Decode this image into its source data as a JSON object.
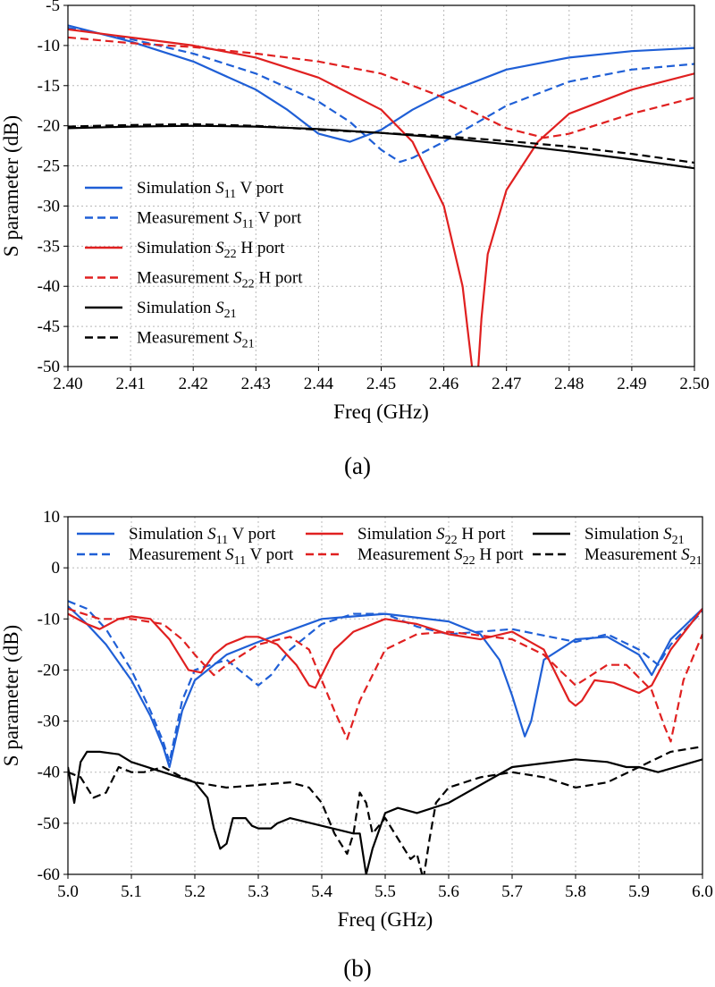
{
  "chart_data": [
    {
      "type": "line",
      "panel_label": "(a)",
      "xlabel": "Freq (GHz)",
      "ylabel": "S parameter (dB)",
      "xlim": [
        2.4,
        2.5
      ],
      "ylim": [
        -50,
        -5
      ],
      "xticks": [
        "2.40",
        "2.41",
        "2.42",
        "2.43",
        "2.44",
        "2.45",
        "2.46",
        "2.47",
        "2.48",
        "2.49",
        "2.50"
      ],
      "yticks": [
        "-5",
        "-10",
        "-15",
        "-20",
        "-25",
        "-30",
        "-35",
        "-40",
        "-45",
        "-50"
      ],
      "grid": true,
      "legend_position": "center-left",
      "series": [
        {
          "name_main": "Simulation ",
          "name_sym": "S",
          "name_sub": "11",
          "name_tail": " V port",
          "color": "#1f5fd6",
          "dashed": false,
          "x": [
            2.4,
            2.41,
            2.42,
            2.43,
            2.435,
            2.44,
            2.445,
            2.45,
            2.455,
            2.46,
            2.47,
            2.48,
            2.49,
            2.5
          ],
          "y": [
            -7.5,
            -9.5,
            -12,
            -15.5,
            -18,
            -21,
            -22,
            -20.5,
            -18,
            -16,
            -13,
            -11.5,
            -10.7,
            -10.3
          ]
        },
        {
          "name_main": "Measurement ",
          "name_sym": "S",
          "name_sub": "11",
          "name_tail": " V port",
          "color": "#1f5fd6",
          "dashed": true,
          "x": [
            2.4,
            2.41,
            2.42,
            2.43,
            2.44,
            2.445,
            2.45,
            2.453,
            2.455,
            2.46,
            2.47,
            2.48,
            2.49,
            2.5
          ],
          "y": [
            -7.8,
            -9.2,
            -11,
            -13.5,
            -17,
            -19.5,
            -23,
            -24.5,
            -24,
            -22,
            -17.5,
            -14.5,
            -13,
            -12.3
          ]
        },
        {
          "name_main": "Simulation ",
          "name_sym": "S",
          "name_sub": "22",
          "name_tail": " H port",
          "color": "#e02020",
          "dashed": false,
          "x": [
            2.4,
            2.41,
            2.42,
            2.43,
            2.44,
            2.45,
            2.455,
            2.46,
            2.463,
            2.4645,
            2.465,
            2.4655,
            2.466,
            2.467,
            2.47,
            2.475,
            2.48,
            2.49,
            2.5
          ],
          "y": [
            -8,
            -9,
            -10,
            -11.5,
            -14,
            -18,
            -22,
            -30,
            -40,
            -50,
            -55,
            -50,
            -44,
            -36,
            -28,
            -22,
            -18.5,
            -15.5,
            -13.5
          ]
        },
        {
          "name_main": "Measurement ",
          "name_sym": "S",
          "name_sub": "22",
          "name_tail": " H port",
          "color": "#e02020",
          "dashed": true,
          "x": [
            2.4,
            2.41,
            2.42,
            2.43,
            2.44,
            2.45,
            2.46,
            2.47,
            2.476,
            2.48,
            2.49,
            2.5
          ],
          "y": [
            -9,
            -9.7,
            -10.2,
            -11,
            -12,
            -13.5,
            -16.5,
            -20.3,
            -21.5,
            -21,
            -18.5,
            -16.5
          ]
        },
        {
          "name_main": "Simulation ",
          "name_sym": "S",
          "name_sub": "21",
          "name_tail": "",
          "color": "#000000",
          "dashed": false,
          "x": [
            2.4,
            2.41,
            2.42,
            2.43,
            2.44,
            2.45,
            2.46,
            2.47,
            2.48,
            2.49,
            2.5
          ],
          "y": [
            -20.3,
            -20.1,
            -20.0,
            -20.1,
            -20.4,
            -20.9,
            -21.5,
            -22.3,
            -23.2,
            -24.2,
            -25.3
          ]
        },
        {
          "name_main": "Measurement ",
          "name_sym": "S",
          "name_sub": "21",
          "name_tail": "",
          "color": "#000000",
          "dashed": true,
          "x": [
            2.4,
            2.41,
            2.42,
            2.43,
            2.44,
            2.45,
            2.46,
            2.47,
            2.48,
            2.49,
            2.5
          ],
          "y": [
            -20.1,
            -19.9,
            -19.8,
            -20.0,
            -20.5,
            -20.9,
            -21.3,
            -21.9,
            -22.6,
            -23.5,
            -24.6
          ]
        }
      ]
    },
    {
      "type": "line",
      "panel_label": "(b)",
      "xlabel": "Freq (GHz)",
      "ylabel": "S parameter (dB)",
      "xlim": [
        5.0,
        6.0
      ],
      "ylim": [
        -60,
        10
      ],
      "xticks": [
        "5.0",
        "5.1",
        "5.2",
        "5.3",
        "5.4",
        "5.5",
        "5.6",
        "5.7",
        "5.8",
        "5.9",
        "6.0"
      ],
      "yticks": [
        "10",
        "0",
        "-10",
        "-20",
        "-30",
        "-40",
        "-50",
        "-60"
      ],
      "grid": true,
      "legend_position": "top",
      "series": [
        {
          "name_main": "Simulation ",
          "name_sym": "S",
          "name_sub": "11",
          "name_tail": " V port",
          "color": "#1f5fd6",
          "dashed": false,
          "x": [
            5.0,
            5.03,
            5.06,
            5.1,
            5.13,
            5.15,
            5.16,
            5.18,
            5.2,
            5.25,
            5.3,
            5.4,
            5.5,
            5.6,
            5.65,
            5.68,
            5.7,
            5.72,
            5.73,
            5.75,
            5.8,
            5.85,
            5.9,
            5.92,
            5.95,
            6.0
          ],
          "y": [
            -7.5,
            -11,
            -15,
            -22,
            -29,
            -35,
            -39,
            -28,
            -22,
            -17,
            -14.5,
            -10,
            -9,
            -10.5,
            -13,
            -18,
            -25,
            -33,
            -30,
            -18,
            -14,
            -13.5,
            -17,
            -21,
            -14,
            -8
          ]
        },
        {
          "name_main": "Measurement ",
          "name_sym": "S",
          "name_sub": "11",
          "name_tail": " V port",
          "color": "#1f5fd6",
          "dashed": true,
          "x": [
            5.0,
            5.03,
            5.06,
            5.1,
            5.13,
            5.15,
            5.16,
            5.18,
            5.2,
            5.25,
            5.28,
            5.3,
            5.32,
            5.35,
            5.4,
            5.45,
            5.5,
            5.55,
            5.6,
            5.7,
            5.8,
            5.85,
            5.9,
            5.93,
            5.95,
            6.0
          ],
          "y": [
            -6.5,
            -8,
            -12,
            -20,
            -28,
            -34,
            -38,
            -26,
            -20,
            -18,
            -21,
            -23,
            -21,
            -16,
            -11,
            -9,
            -9,
            -11.5,
            -13,
            -12,
            -14.5,
            -13,
            -16,
            -19,
            -15,
            -8.5
          ]
        },
        {
          "name_main": "Simulation ",
          "name_sym": "S",
          "name_sub": "22",
          "name_tail": " H port",
          "color": "#e02020",
          "dashed": false,
          "x": [
            5.0,
            5.03,
            5.05,
            5.08,
            5.1,
            5.13,
            5.16,
            5.19,
            5.21,
            5.23,
            5.25,
            5.28,
            5.3,
            5.33,
            5.36,
            5.38,
            5.39,
            5.4,
            5.42,
            5.45,
            5.5,
            5.55,
            5.6,
            5.65,
            5.7,
            5.75,
            5.79,
            5.8,
            5.81,
            5.83,
            5.86,
            5.9,
            5.92,
            5.95,
            6.0
          ],
          "y": [
            -9,
            -11,
            -12,
            -10,
            -9.5,
            -10,
            -14,
            -20,
            -20.5,
            -17,
            -15,
            -13.5,
            -13.5,
            -15,
            -19,
            -23,
            -23.5,
            -21,
            -16,
            -12.5,
            -10,
            -11,
            -13,
            -14,
            -12.5,
            -16,
            -26,
            -27,
            -26,
            -22,
            -22.5,
            -24.5,
            -23,
            -16,
            -8
          ]
        },
        {
          "name_main": "Measurement ",
          "name_sym": "S",
          "name_sub": "22",
          "name_tail": " H port",
          "color": "#e02020",
          "dashed": true,
          "x": [
            5.0,
            5.05,
            5.1,
            5.15,
            5.18,
            5.2,
            5.23,
            5.25,
            5.3,
            5.35,
            5.38,
            5.4,
            5.42,
            5.44,
            5.46,
            5.5,
            5.55,
            5.6,
            5.7,
            5.75,
            5.8,
            5.85,
            5.88,
            5.92,
            5.94,
            5.95,
            5.97,
            6.0
          ],
          "y": [
            -8,
            -10,
            -10,
            -11,
            -14,
            -17,
            -21,
            -19,
            -15,
            -13.5,
            -16,
            -22,
            -28,
            -33.5,
            -26,
            -16,
            -13,
            -12.5,
            -14,
            -17,
            -23,
            -19,
            -19,
            -24,
            -31,
            -34,
            -22,
            -13
          ]
        },
        {
          "name_main": "Simulation ",
          "name_sym": "S",
          "name_sub": "21",
          "name_tail": "",
          "color": "#000000",
          "dashed": false,
          "x": [
            5.0,
            5.01,
            5.02,
            5.03,
            5.05,
            5.08,
            5.1,
            5.15,
            5.2,
            5.22,
            5.23,
            5.24,
            5.25,
            5.26,
            5.28,
            5.29,
            5.3,
            5.32,
            5.33,
            5.35,
            5.4,
            5.45,
            5.46,
            5.47,
            5.48,
            5.5,
            5.52,
            5.55,
            5.6,
            5.7,
            5.8,
            5.85,
            5.88,
            5.9,
            5.93,
            6.0
          ],
          "y": [
            -39,
            -46,
            -38,
            -36,
            -36,
            -36.5,
            -38,
            -40,
            -42,
            -45,
            -51,
            -55,
            -54,
            -49,
            -49,
            -50.5,
            -51,
            -51,
            -50,
            -49,
            -50.5,
            -52,
            -52,
            -60,
            -55,
            -48,
            -47,
            -48,
            -46,
            -39,
            -37.5,
            -38,
            -39,
            -39,
            -40,
            -37.5
          ]
        },
        {
          "name_main": "Measurement ",
          "name_sym": "S",
          "name_sub": "21",
          "name_tail": "",
          "color": "#000000",
          "dashed": true,
          "x": [
            5.0,
            5.02,
            5.04,
            5.06,
            5.08,
            5.1,
            5.12,
            5.15,
            5.18,
            5.2,
            5.25,
            5.3,
            5.35,
            5.38,
            5.4,
            5.42,
            5.44,
            5.45,
            5.46,
            5.47,
            5.48,
            5.5,
            5.52,
            5.54,
            5.55,
            5.56,
            5.57,
            5.58,
            5.6,
            5.65,
            5.7,
            5.75,
            5.8,
            5.85,
            5.9,
            5.95,
            6.0
          ],
          "y": [
            -40,
            -41,
            -45,
            -44,
            -39,
            -40,
            -40,
            -39,
            -41,
            -42,
            -43,
            -42.5,
            -42,
            -43,
            -46,
            -52,
            -56,
            -52,
            -44,
            -46,
            -52,
            -49,
            -53,
            -57,
            -56,
            -61,
            -53,
            -46,
            -43,
            -41,
            -40,
            -41,
            -43,
            -42,
            -39,
            -36,
            -35
          ]
        }
      ]
    }
  ]
}
